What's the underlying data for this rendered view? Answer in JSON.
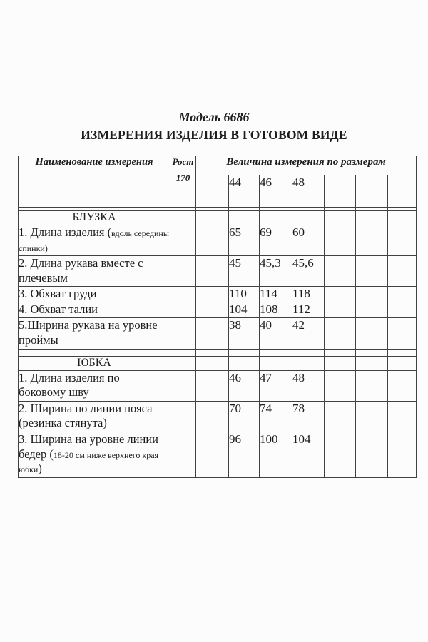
{
  "colors": {
    "background": "#fcfcfc",
    "text": "#1c1c1c",
    "table_lines": "#414141"
  },
  "title": {
    "model": "Модель 6686",
    "heading": "ИЗМЕРЕНИЯ ИЗДЕЛИЯ В ГОТОВОМ ВИДЕ"
  },
  "table": {
    "header": {
      "name_col": "Наименование измерения",
      "height_col_line1": "Рост",
      "height_col_line2": "170",
      "sizes_span": "Величина измерения по размерам",
      "size_cells": [
        "",
        "44",
        "46",
        "48",
        "",
        "",
        ""
      ]
    },
    "sections": [
      {
        "title": "БЛУЗКА",
        "rows": [
          {
            "label": [
              {
                "text": "1. Длина изделия (",
                "small": false
              },
              {
                "text": "вдоль середины спинки)",
                "small": true
              }
            ],
            "values": [
              "",
              "65",
              "69",
              "60",
              "",
              "",
              ""
            ]
          },
          {
            "label": [
              {
                "text": "2. Длина рукава вместе с плечевым",
                "small": false
              }
            ],
            "values": [
              "",
              "45",
              "45,3",
              "45,6",
              "",
              "",
              ""
            ]
          },
          {
            "label": [
              {
                "text": "3. Обхват груди",
                "small": false
              }
            ],
            "values": [
              "",
              "110",
              "114",
              "118",
              "",
              "",
              ""
            ]
          },
          {
            "label": [
              {
                "text": "4. Обхват талии",
                "small": false
              }
            ],
            "values": [
              "",
              "104",
              "108",
              "112",
              "",
              "",
              ""
            ]
          },
          {
            "label": [
              {
                "text": "5.Ширина рукава на уровне проймы",
                "small": false
              }
            ],
            "values": [
              "",
              "38",
              "40",
              "42",
              "",
              "",
              ""
            ]
          }
        ]
      },
      {
        "title": "ЮБКА",
        "rows": [
          {
            "label": [
              {
                "text": "1. Длина изделия по боковому шву",
                "small": false
              }
            ],
            "values": [
              "",
              "46",
              "47",
              "48",
              "",
              "",
              ""
            ]
          },
          {
            "label": [
              {
                "text": "2. Ширина по линии пояса (резинка стянута)",
                "small": false
              }
            ],
            "values": [
              "",
              "70",
              "74",
              "78",
              "",
              "",
              ""
            ]
          },
          {
            "label": [
              {
                "text": "3. Ширина на уровне линии бедер (",
                "small": false
              },
              {
                "text": "18-20 см ниже верхнего края юбки",
                "small": true
              },
              {
                "text": ")",
                "small": false
              }
            ],
            "values": [
              "",
              "96",
              "100",
              "104",
              "",
              "",
              ""
            ]
          }
        ]
      }
    ]
  }
}
